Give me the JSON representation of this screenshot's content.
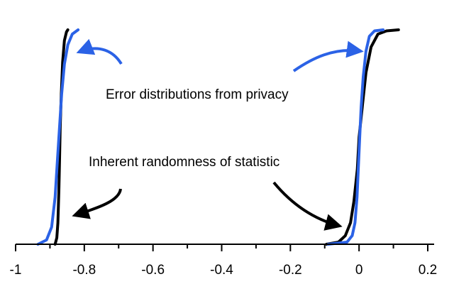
{
  "chart_data": {
    "type": "line",
    "title": "",
    "xlabel": "",
    "ylabel": "",
    "xlim": [
      -1.0,
      0.2
    ],
    "ylim": [
      0,
      1
    ],
    "grid": false,
    "legend": "none",
    "x_ticks": [
      -1.0,
      -0.8,
      -0.6,
      -0.4,
      -0.2,
      0.0,
      0.2
    ],
    "x_tick_labels": [
      "-1",
      "-0.8",
      "-0.6",
      "-0.4",
      "-0.2",
      "0",
      "0.2"
    ],
    "series": [
      {
        "color": "#000000",
        "points": [
          [
            -0.885,
            0.0
          ],
          [
            -0.88,
            0.03
          ],
          [
            -0.877,
            0.1
          ],
          [
            -0.874,
            0.25
          ],
          [
            -0.872,
            0.4
          ],
          [
            -0.87,
            0.55
          ],
          [
            -0.867,
            0.7
          ],
          [
            -0.863,
            0.85
          ],
          [
            -0.858,
            0.95
          ],
          [
            -0.852,
            0.99
          ],
          [
            -0.848,
            1.0
          ]
        ]
      },
      {
        "color": "#2b62e6",
        "points": [
          [
            -0.935,
            0.0
          ],
          [
            -0.91,
            0.02
          ],
          [
            -0.895,
            0.08
          ],
          [
            -0.885,
            0.22
          ],
          [
            -0.878,
            0.4
          ],
          [
            -0.872,
            0.55
          ],
          [
            -0.866,
            0.7
          ],
          [
            -0.858,
            0.84
          ],
          [
            -0.848,
            0.93
          ],
          [
            -0.835,
            0.98
          ],
          [
            -0.818,
            1.0
          ]
        ]
      },
      {
        "color": "#000000",
        "points": [
          [
            -0.095,
            0.0
          ],
          [
            -0.06,
            0.01
          ],
          [
            -0.04,
            0.04
          ],
          [
            -0.025,
            0.1
          ],
          [
            -0.015,
            0.2
          ],
          [
            -0.005,
            0.35
          ],
          [
            0.0,
            0.5
          ],
          [
            0.01,
            0.65
          ],
          [
            0.02,
            0.8
          ],
          [
            0.035,
            0.92
          ],
          [
            0.055,
            0.98
          ],
          [
            0.08,
            0.995
          ],
          [
            0.115,
            1.0
          ]
        ]
      },
      {
        "color": "#2b62e6",
        "points": [
          [
            -0.09,
            0.0
          ],
          [
            -0.035,
            0.01
          ],
          [
            -0.02,
            0.04
          ],
          [
            -0.012,
            0.1
          ],
          [
            -0.006,
            0.22
          ],
          [
            -0.002,
            0.36
          ],
          [
            0.002,
            0.5
          ],
          [
            0.006,
            0.64
          ],
          [
            0.012,
            0.78
          ],
          [
            0.02,
            0.9
          ],
          [
            0.03,
            0.97
          ],
          [
            0.045,
            0.995
          ],
          [
            0.07,
            1.0
          ]
        ]
      }
    ],
    "annotations": [
      {
        "text": "Error distributions from privacy",
        "color": "#000000"
      },
      {
        "text": "Inherent randomness of statistic",
        "color": "#000000"
      }
    ],
    "arrow_colors": {
      "privacy": "#2b62e6",
      "statistic": "#000000"
    }
  }
}
